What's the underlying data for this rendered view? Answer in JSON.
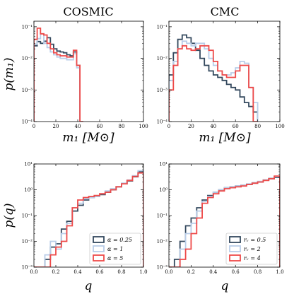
{
  "figure": {
    "column_titles": [
      "COSMIC",
      "CMC"
    ],
    "ylabel_top": "p(m₁)",
    "ylabel_bottom": "p(q)",
    "xlabel_top": "m₁ [M⊙]",
    "xlabel_bottom": "q"
  },
  "colors": {
    "dark": "#34495e",
    "light": "#b9cde8",
    "red": "#ee4a49"
  },
  "chart_data": [
    {
      "type": "step",
      "panel": "COSMIC-m1",
      "title": "COSMIC",
      "xlabel": "m₁ [M⊙]",
      "ylabel": "p(m₁)",
      "xlim": [
        0,
        100
      ],
      "ylim": [
        0.0001,
        0.15
      ],
      "yscale": "log",
      "xticks": [
        0,
        20,
        40,
        60,
        80,
        100
      ],
      "yticks": [
        {
          "v": 0.1,
          "l": "10⁻¹"
        },
        {
          "v": 0.01,
          "l": "10⁻²"
        },
        {
          "v": 0.001,
          "l": "10⁻³"
        },
        {
          "v": 0.0001,
          "l": "10⁻⁴"
        }
      ],
      "x": [
        3,
        6,
        9,
        12,
        15,
        18,
        21,
        24,
        27,
        30,
        33,
        36,
        39,
        42,
        45
      ],
      "series": [
        {
          "name": "α = 0.25",
          "color": "dark",
          "values": [
            0.025,
            0.034,
            0.03,
            0.035,
            0.045,
            0.028,
            0.02,
            0.017,
            0.016,
            0.015,
            0.013,
            0.012,
            0.016,
            0.006,
            0.0001
          ]
        },
        {
          "name": "α = 1",
          "color": "light",
          "values": [
            0.028,
            0.042,
            0.06,
            0.03,
            0.022,
            0.016,
            0.013,
            0.011,
            0.01,
            0.01,
            0.009,
            0.009,
            0.014,
            0.005,
            0.0001
          ]
        },
        {
          "name": "α = 5",
          "color": "red",
          "values": [
            0.04,
            0.09,
            0.06,
            0.055,
            0.03,
            0.02,
            0.015,
            0.013,
            0.012,
            0.012,
            0.011,
            0.011,
            0.018,
            0.006,
            0.0001
          ]
        }
      ]
    },
    {
      "type": "step",
      "panel": "CMC-m1",
      "title": "CMC",
      "xlabel": "m₁ [M⊙]",
      "ylabel": "",
      "xlim": [
        0,
        100
      ],
      "ylim": [
        0.0001,
        0.15
      ],
      "yscale": "log",
      "xticks": [
        0,
        20,
        40,
        60,
        80,
        100
      ],
      "yticks": [
        {
          "v": 0.1,
          "l": "10⁻¹"
        },
        {
          "v": 0.01,
          "l": "10⁻²"
        },
        {
          "v": 0.001,
          "l": "10⁻³"
        },
        {
          "v": 0.0001,
          "l": "10⁻⁴"
        }
      ],
      "x": [
        4,
        8,
        12,
        16,
        20,
        24,
        28,
        32,
        36,
        40,
        44,
        48,
        52,
        56,
        60,
        64,
        68,
        72,
        76,
        80
      ],
      "series": [
        {
          "name": "rᵥ = 0.5",
          "color": "dark",
          "values": [
            0.003,
            0.015,
            0.04,
            0.055,
            0.045,
            0.03,
            0.018,
            0.01,
            0.006,
            0.004,
            0.003,
            0.0025,
            0.002,
            0.0015,
            0.0012,
            0.001,
            0.0006,
            0.0004,
            0.0003,
            0.0002
          ]
        },
        {
          "name": "rᵥ = 2",
          "color": "light",
          "values": [
            0.002,
            0.008,
            0.02,
            0.035,
            0.03,
            0.025,
            0.03,
            0.03,
            0.02,
            0.01,
            0.006,
            0.004,
            0.003,
            0.003,
            0.0035,
            0.005,
            0.008,
            0.007,
            0.0012,
            0.0004
          ]
        },
        {
          "name": "rᵥ = 4",
          "color": "red",
          "values": [
            0.001,
            0.006,
            0.02,
            0.025,
            0.02,
            0.018,
            0.02,
            0.025,
            0.025,
            0.018,
            0.008,
            0.004,
            0.003,
            0.0025,
            0.0025,
            0.004,
            0.006,
            0.006,
            0.0012,
            0.0001
          ]
        }
      ]
    },
    {
      "type": "step",
      "panel": "COSMIC-q",
      "title": "",
      "xlabel": "q",
      "ylabel": "p(q)",
      "xlim": [
        0,
        1
      ],
      "ylim": [
        0.001,
        10
      ],
      "yscale": "log",
      "xticks": [
        {
          "v": 0,
          "l": "0.0"
        },
        {
          "v": 0.2,
          "l": "0.2"
        },
        {
          "v": 0.4,
          "l": "0.4"
        },
        {
          "v": 0.6,
          "l": "0.6"
        },
        {
          "v": 0.8,
          "l": "0.8"
        },
        {
          "v": 1,
          "l": "1.0"
        }
      ],
      "yticks": [
        {
          "v": 10,
          "l": "10¹"
        },
        {
          "v": 1,
          "l": "10⁰"
        },
        {
          "v": 0.1,
          "l": "10⁻¹"
        },
        {
          "v": 0.01,
          "l": "10⁻²"
        },
        {
          "v": 0.001,
          "l": "10⁻³"
        }
      ],
      "x": [
        0.05,
        0.1,
        0.15,
        0.2,
        0.25,
        0.3,
        0.35,
        0.4,
        0.45,
        0.5,
        0.55,
        0.6,
        0.65,
        0.7,
        0.75,
        0.8,
        0.85,
        0.9,
        0.95,
        1.0
      ],
      "legend": {
        "position": "lower-right"
      },
      "series": [
        {
          "name": "α = 0.25",
          "color": "dark",
          "values": [
            0.001,
            0.001,
            0.002,
            0.006,
            0.008,
            0.03,
            0.06,
            0.15,
            0.25,
            0.4,
            0.5,
            0.55,
            0.65,
            0.8,
            1.0,
            1.3,
            1.7,
            2.2,
            3.2,
            5.0
          ]
        },
        {
          "name": "α = 1",
          "color": "light",
          "values": [
            0.001,
            0.001,
            0.003,
            0.01,
            0.005,
            0.02,
            0.05,
            0.2,
            0.3,
            0.45,
            0.5,
            0.55,
            0.7,
            0.9,
            1.1,
            1.3,
            1.8,
            2.4,
            3.5,
            5.5
          ]
        },
        {
          "name": "α = 5",
          "color": "red",
          "values": [
            0.001,
            0.001,
            0.001,
            0.003,
            0.006,
            0.01,
            0.04,
            0.2,
            0.4,
            0.5,
            0.55,
            0.6,
            0.7,
            0.8,
            1.0,
            1.3,
            1.7,
            2.3,
            3.3,
            4.5
          ]
        }
      ]
    },
    {
      "type": "step",
      "panel": "CMC-q",
      "title": "",
      "xlabel": "q",
      "ylabel": "",
      "xlim": [
        0,
        1
      ],
      "ylim": [
        0.001,
        10
      ],
      "yscale": "log",
      "xticks": [
        {
          "v": 0,
          "l": "0.0"
        },
        {
          "v": 0.2,
          "l": "0.2"
        },
        {
          "v": 0.4,
          "l": "0.4"
        },
        {
          "v": 0.6,
          "l": "0.6"
        },
        {
          "v": 0.8,
          "l": "0.8"
        },
        {
          "v": 1,
          "l": "1.0"
        }
      ],
      "yticks": [
        {
          "v": 10,
          "l": "10¹"
        },
        {
          "v": 1,
          "l": "10⁰"
        },
        {
          "v": 0.1,
          "l": "10⁻¹"
        },
        {
          "v": 0.01,
          "l": "10⁻²"
        },
        {
          "v": 0.001,
          "l": "10⁻³"
        }
      ],
      "x": [
        0.05,
        0.1,
        0.15,
        0.2,
        0.25,
        0.3,
        0.35,
        0.4,
        0.45,
        0.5,
        0.55,
        0.6,
        0.65,
        0.7,
        0.75,
        0.8,
        0.85,
        0.9,
        0.95,
        1.0
      ],
      "legend": {
        "position": "lower-right"
      },
      "series": [
        {
          "name": "rᵥ = 0.5",
          "color": "dark",
          "values": [
            0.001,
            0.002,
            0.01,
            0.04,
            0.08,
            0.2,
            0.4,
            0.6,
            0.8,
            1.0,
            1.2,
            1.3,
            1.4,
            1.5,
            1.6,
            1.8,
            2.0,
            2.4,
            2.7,
            3.0
          ]
        },
        {
          "name": "rᵥ = 2",
          "color": "light",
          "values": [
            0.001,
            0.001,
            0.005,
            0.02,
            0.05,
            0.15,
            0.35,
            0.55,
            0.8,
            1.0,
            1.2,
            1.3,
            1.4,
            1.5,
            1.7,
            1.9,
            2.1,
            2.4,
            2.8,
            3.2
          ]
        },
        {
          "name": "rᵥ = 4",
          "color": "red",
          "values": [
            0.001,
            0.001,
            0.002,
            0.005,
            0.02,
            0.08,
            0.3,
            0.5,
            0.7,
            0.9,
            1.1,
            1.2,
            1.3,
            1.4,
            1.6,
            1.8,
            2.0,
            2.3,
            2.7,
            3.4
          ]
        }
      ]
    }
  ]
}
